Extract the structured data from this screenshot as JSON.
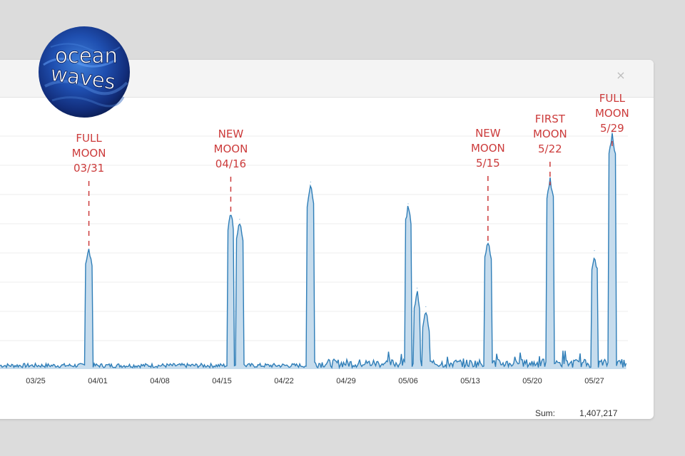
{
  "logo": {
    "line1": "ocean",
    "line2": "waves"
  },
  "window": {
    "close_icon": "close-icon",
    "close_glyph": "×"
  },
  "footer": {
    "sum_label": "Sum:",
    "sum_value": "1,407,217"
  },
  "chart_data": {
    "type": "area",
    "x_ticks": [
      "03/25",
      "04/01",
      "04/08",
      "04/15",
      "04/22",
      "04/29",
      "05/06",
      "05/13",
      "05/20",
      "05/27"
    ],
    "series_color": "#2f7eb8",
    "fill_color": "#c6dced",
    "annotations": [
      {
        "lines": [
          "FULL",
          "MOON",
          "03/31"
        ],
        "date": "03/31"
      },
      {
        "lines": [
          "NEW",
          "MOON",
          "04/16"
        ],
        "date": "04/16"
      },
      {
        "lines": [
          "NEW",
          "MOON",
          "5/15"
        ],
        "date": "05/15"
      },
      {
        "lines": [
          "FIRST",
          "MOON",
          "5/22"
        ],
        "date": "05/22"
      },
      {
        "lines": [
          "FULL",
          "MOON",
          "5/29"
        ],
        "date": "05/29"
      }
    ],
    "spikes": [
      {
        "date": "03/31",
        "value": 40
      },
      {
        "date": "04/16",
        "value": 51
      },
      {
        "date": "04/17",
        "value": 48
      },
      {
        "date": "04/25",
        "value": 60
      },
      {
        "date": "05/06",
        "value": 53
      },
      {
        "date": "05/07",
        "value": 26
      },
      {
        "date": "05/08",
        "value": 20
      },
      {
        "date": "05/15",
        "value": 42
      },
      {
        "date": "05/22",
        "value": 62
      },
      {
        "date": "05/27",
        "value": 38
      },
      {
        "date": "05/29",
        "value": 76
      }
    ],
    "grid": true,
    "ylim": [
      0,
      85
    ]
  }
}
